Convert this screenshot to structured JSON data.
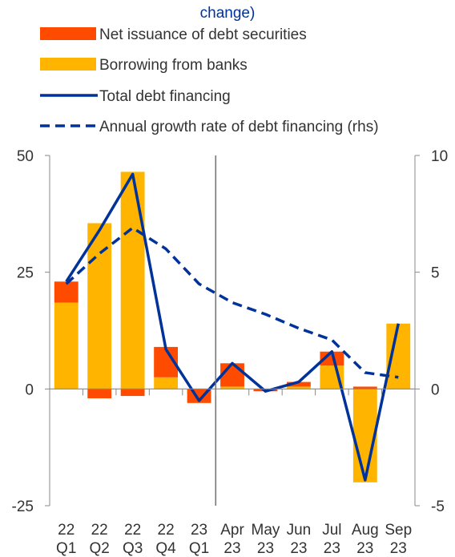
{
  "chart_data": {
    "type": "bar",
    "title_fragment": "change)",
    "categories": [
      [
        "22",
        "Q1"
      ],
      [
        "22",
        "Q2"
      ],
      [
        "22",
        "Q3"
      ],
      [
        "22",
        "Q4"
      ],
      [
        "23",
        "Q1"
      ],
      [
        "Apr",
        "23"
      ],
      [
        "May",
        "23"
      ],
      [
        "Jun",
        "23"
      ],
      [
        "Jul",
        "23"
      ],
      [
        "Aug",
        "23"
      ],
      [
        "Sep",
        "23"
      ]
    ],
    "series": [
      {
        "name": "Net issuance of debt securities",
        "kind": "bar",
        "axis": "left",
        "values": [
          4.5,
          -2,
          -1.5,
          6.5,
          -3,
          5,
          -0.5,
          1,
          3,
          0.5,
          0
        ]
      },
      {
        "name": "Borrowing from banks",
        "kind": "bar",
        "axis": "left",
        "values": [
          18.5,
          35.5,
          46.5,
          2.5,
          0,
          0.5,
          0,
          0.5,
          5,
          -20,
          14
        ]
      },
      {
        "name": "Total debt financing",
        "kind": "line",
        "axis": "left",
        "values": [
          23,
          34,
          46,
          8.5,
          -2.5,
          5.5,
          -0.5,
          1.5,
          8,
          -19.5,
          14
        ]
      },
      {
        "name": "Annual growth rate of debt financing (rhs)",
        "kind": "dashed-line",
        "axis": "right",
        "values": [
          4.5,
          5.8,
          6.9,
          6.0,
          4.5,
          3.7,
          3.2,
          2.6,
          2.1,
          0.7,
          0.5
        ]
      }
    ],
    "left_axis": {
      "min": -25,
      "max": 50,
      "ticks": [
        "50",
        "25",
        "0",
        "-25"
      ]
    },
    "right_axis": {
      "min": -5,
      "max": 10,
      "ticks": [
        "10",
        "5",
        "0",
        "-5"
      ]
    },
    "vertical_separator_after_index": 4,
    "legend_placement": "top-left",
    "colors": {
      "net_issuance": "#FF4B00",
      "bank_borrowing": "#FFB400",
      "total_line": "#003299",
      "growth_line": "#003299",
      "title": "#003299",
      "axis": "#888888",
      "text": "#333333"
    }
  }
}
